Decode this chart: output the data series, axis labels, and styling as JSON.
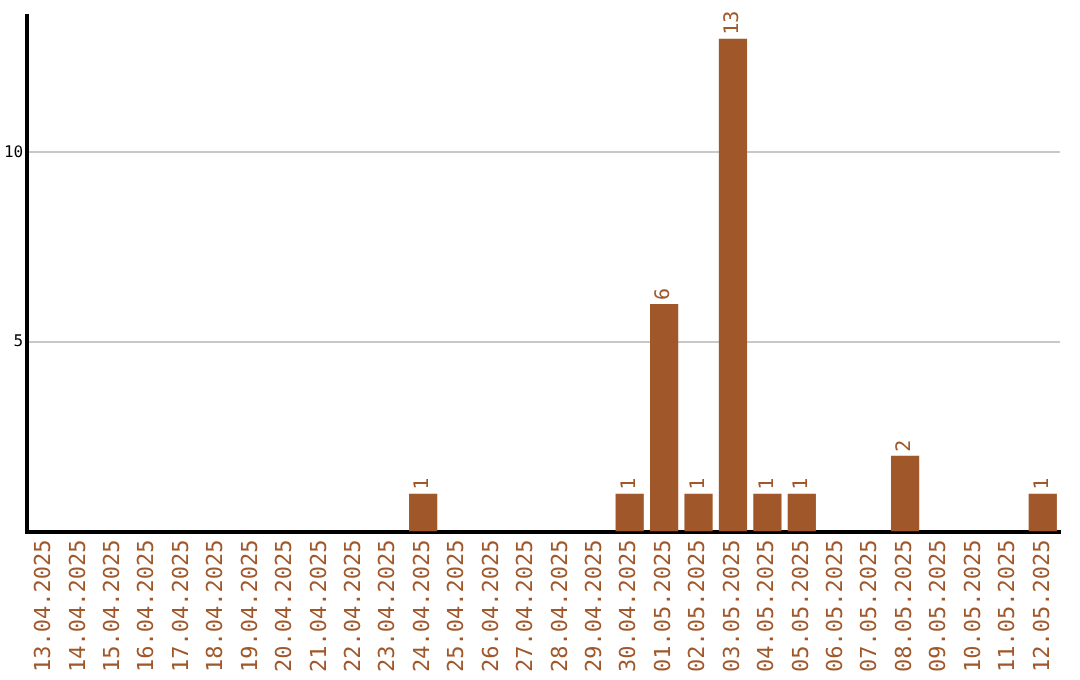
{
  "chart_data": {
    "type": "bar",
    "categories": [
      "13.04.2025",
      "14.04.2025",
      "15.04.2025",
      "16.04.2025",
      "17.04.2025",
      "18.04.2025",
      "19.04.2025",
      "20.04.2025",
      "21.04.2025",
      "22.04.2025",
      "23.04.2025",
      "24.04.2025",
      "25.04.2025",
      "26.04.2025",
      "27.04.2025",
      "28.04.2025",
      "29.04.2025",
      "30.04.2025",
      "01.05.2025",
      "02.05.2025",
      "03.05.2025",
      "04.05.2025",
      "05.05.2025",
      "06.05.2025",
      "07.05.2025",
      "08.05.2025",
      "09.05.2025",
      "10.05.2025",
      "11.05.2025",
      "12.05.2025"
    ],
    "values": [
      0,
      0,
      0,
      0,
      0,
      0,
      0,
      0,
      0,
      0,
      0,
      1,
      0,
      0,
      0,
      0,
      0,
      1,
      6,
      1,
      13,
      1,
      1,
      0,
      0,
      2,
      0,
      0,
      0,
      1
    ],
    "value_labels": [
      null,
      null,
      null,
      null,
      null,
      null,
      null,
      null,
      null,
      null,
      null,
      "1",
      null,
      null,
      null,
      null,
      null,
      "1",
      "6",
      "1",
      "13",
      "1",
      "1",
      null,
      null,
      "2",
      null,
      null,
      null,
      "1"
    ],
    "color": "#a0572a",
    "ylim": [
      0,
      13.6
    ],
    "yticks": [
      5,
      10
    ],
    "grid": "y",
    "legend": false
  }
}
